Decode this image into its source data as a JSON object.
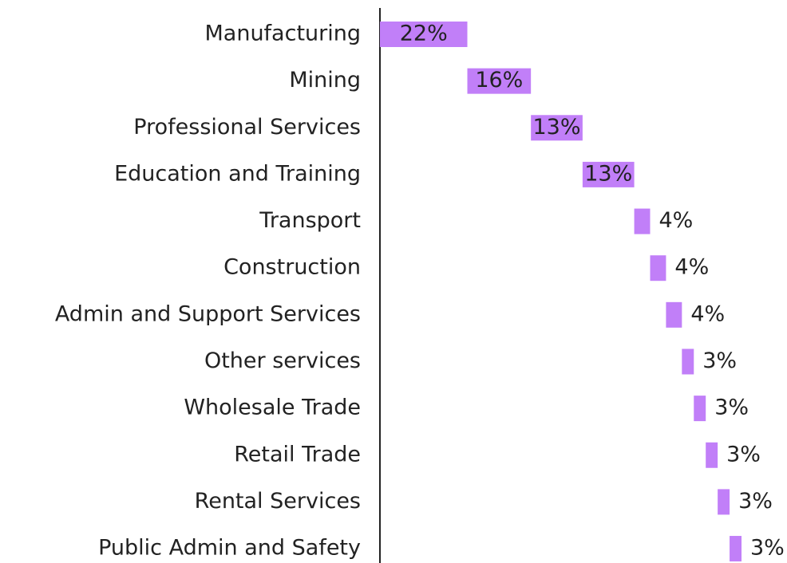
{
  "chart_data": {
    "type": "waterfall",
    "orientation": "horizontal",
    "categories": [
      "Manufacturing",
      "Mining",
      "Professional Services",
      "Education and Training",
      "Transport",
      "Construction",
      "Admin and Support Services",
      "Other services",
      "Wholesale Trade",
      "Retail Trade",
      "Rental Services",
      "Public Admin and Safety"
    ],
    "values": [
      22,
      16,
      13,
      13,
      4,
      4,
      4,
      3,
      3,
      3,
      3,
      3
    ],
    "value_labels": [
      "22%",
      "16%",
      "13%",
      "13%",
      "4%",
      "4%",
      "4%",
      "3%",
      "3%",
      "3%",
      "3%",
      "3%"
    ],
    "color": "#c17ff8"
  }
}
